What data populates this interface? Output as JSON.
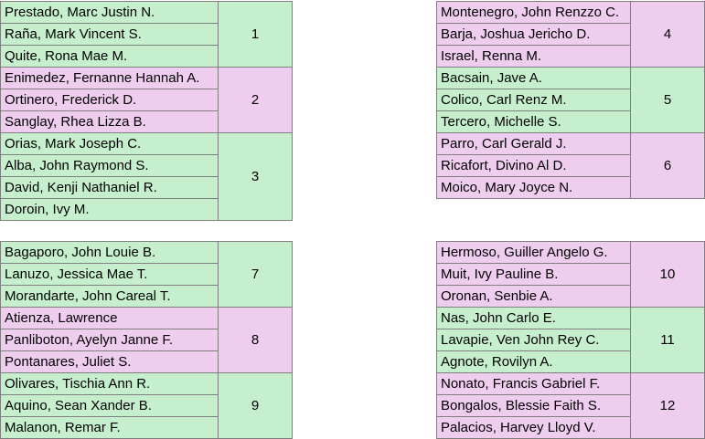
{
  "colors": {
    "green": "#c6efce",
    "pink": "#efcdee",
    "border": "#7f7f7f"
  },
  "groups": [
    {
      "number": "1",
      "color": "green",
      "members": [
        "Prestado, Marc Justin N.",
        "Raña, Mark Vincent S.",
        "Quite, Rona Mae M."
      ]
    },
    {
      "number": "2",
      "color": "pink",
      "members": [
        "Enimedez, Fernanne Hannah A.",
        "Ortinero, Frederick D.",
        "Sanglay, Rhea Lizza B."
      ]
    },
    {
      "number": "3",
      "color": "green",
      "members": [
        "Orias, Mark Joseph C.",
        "Alba, John Raymond S.",
        "David, Kenji Nathaniel R.",
        "Doroin, Ivy M."
      ]
    },
    {
      "number": "4",
      "color": "pink",
      "members": [
        "Montenegro, John Renzzo C.",
        "Barja, Joshua Jericho D.",
        "Israel, Renna M."
      ]
    },
    {
      "number": "5",
      "color": "green",
      "members": [
        "Bacsain, Jave A.",
        "Colico, Carl Renz M.",
        "Tercero, Michelle S."
      ]
    },
    {
      "number": "6",
      "color": "pink",
      "members": [
        "Parro, Carl Gerald J.",
        "Ricafort, Divino Al D.",
        "Moico, Mary Joyce N."
      ]
    },
    {
      "number": "7",
      "color": "green",
      "members": [
        "Bagaporo, John Louie B.",
        "Lanuzo, Jessica Mae T.",
        "Morandarte, John Careal T."
      ]
    },
    {
      "number": "8",
      "color": "pink",
      "members": [
        "Atienza, Lawrence",
        "Panliboton, Ayelyn Janne F.",
        "Pontanares, Juliet S."
      ]
    },
    {
      "number": "9",
      "color": "green",
      "members": [
        "Olivares, Tischia Ann R.",
        "Aquino, Sean Xander B.",
        "Malanon, Remar F."
      ]
    },
    {
      "number": "10",
      "color": "green",
      "members": [
        "Hermoso, Guiller Angelo G.",
        "Muit, Ivy Pauline B.",
        "Oronan, Senbie A."
      ]
    },
    {
      "number": "11",
      "color": "green",
      "members": [
        "Nas, John Carlo E.",
        "Lavapie, Ven John Rey C.",
        "Agnote, Rovilyn A."
      ]
    },
    {
      "number": "12",
      "color": "pink",
      "members": [
        "Nonato, Francis Gabriel F.",
        "Bongalos, Blessie Faith S.",
        "Palacios, Harvey Lloyd V."
      ]
    }
  ]
}
